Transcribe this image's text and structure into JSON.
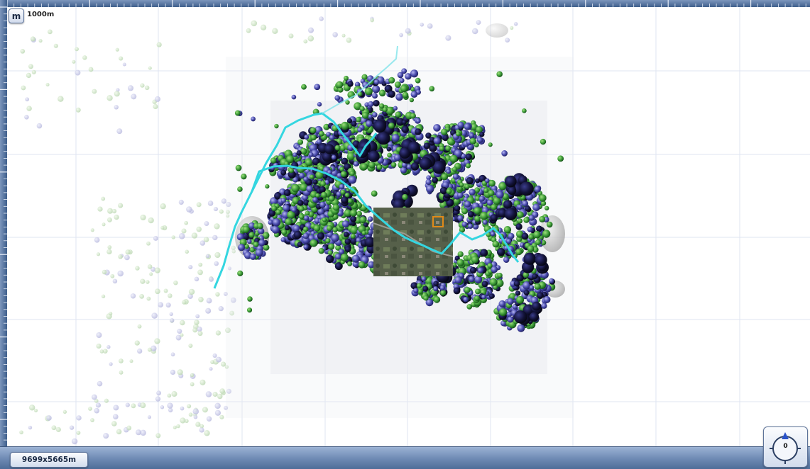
{
  "toolbar": {
    "unit_button_label": "m",
    "scale_label": "1000m"
  },
  "status": {
    "map_extent_label": "9699x5665m"
  },
  "compass": {
    "heading_value": "0"
  },
  "icons": {
    "compass": "compass-icon",
    "aerial_photo": "aerial-imagery-tile"
  },
  "colors": {
    "ruler": "#4f6d98",
    "road_line": "#34d6e0",
    "green_points": "#3f9d3a",
    "blue_points": "#4a4cae",
    "dark_points": "#121238",
    "grid": "#dfe4f2"
  }
}
